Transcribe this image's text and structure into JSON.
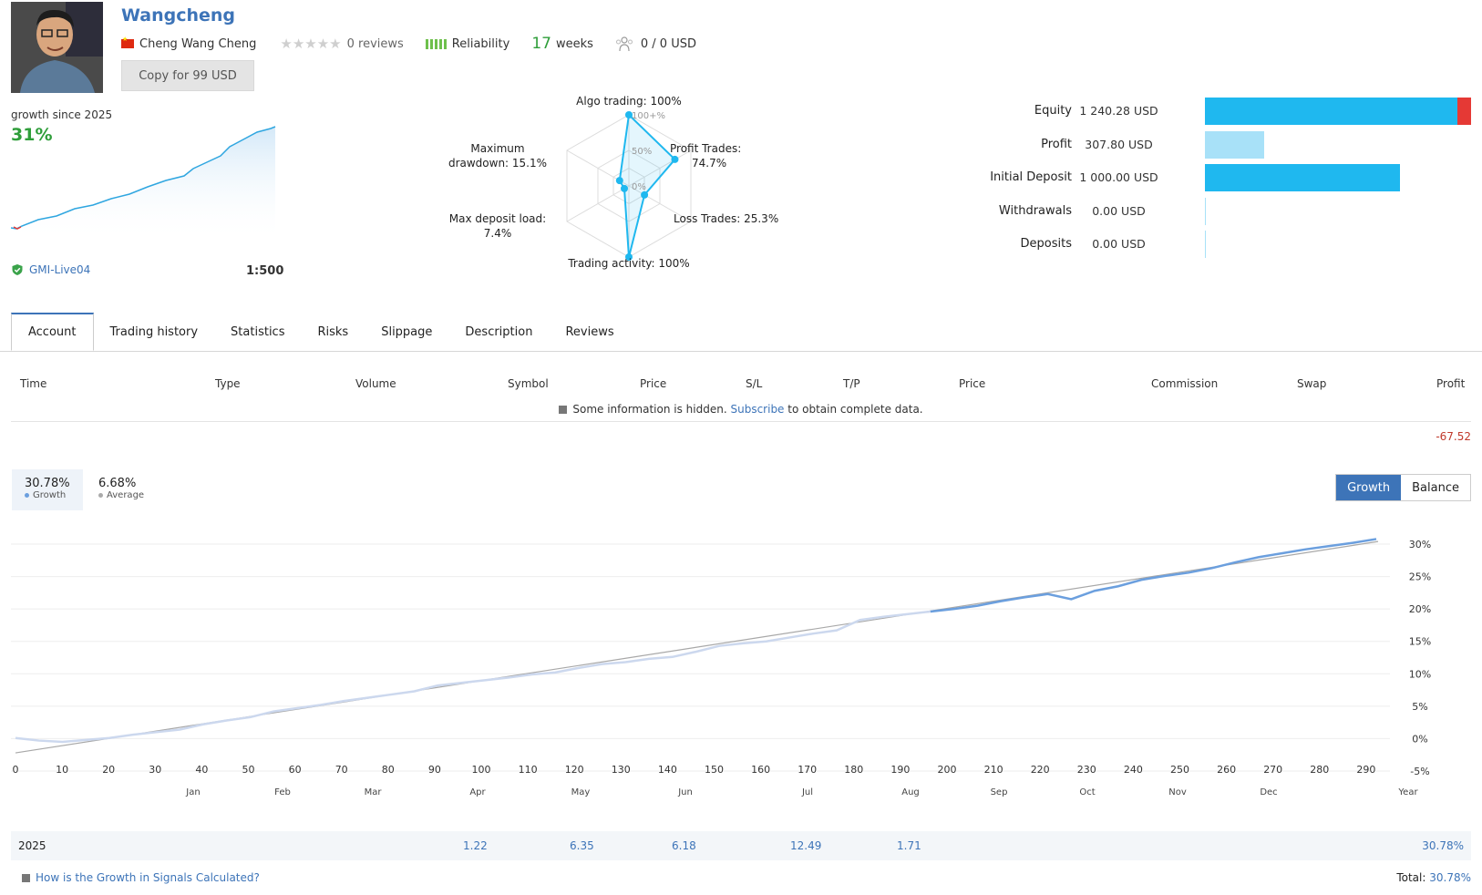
{
  "provider": {
    "name": "Wangcheng",
    "owner": "Cheng Wang Cheng",
    "country_flag": "china-flag",
    "reviews": "0 reviews",
    "reliability_label": "Reliability",
    "weeks_value": "17",
    "weeks_label": "weeks",
    "subscribers": "0 / 0 USD",
    "copy_button": "Copy for 99 USD"
  },
  "growth_summary": {
    "label": "growth since 2025",
    "value": "31%",
    "broker": "GMI-Live04",
    "leverage": "1:500"
  },
  "radar": {
    "algo": "Algo trading: 100%",
    "profit_a": "Profit Trades:",
    "profit_b": "74.7%",
    "loss": "Loss Trades: 25.3%",
    "activity": "Trading activity: 100%",
    "load_a": "Max deposit load:",
    "load_b": "7.4%",
    "dd_a": "Maximum",
    "dd_b": "drawdown: 15.1%",
    "ring_100": "100+%",
    "ring_50": "50%",
    "ring_0": "0%",
    "values": {
      "algo": 100,
      "profit": 74.7,
      "loss": 25.3,
      "activity": 100,
      "load": 7.4,
      "drawdown": 15.1
    }
  },
  "equity": [
    {
      "label": "Equity",
      "value": "1 240.28 USD",
      "amount": 1240.28
    },
    {
      "label": "Profit",
      "value": "307.80 USD",
      "amount": 307.8
    },
    {
      "label": "Initial Deposit",
      "value": "1 000.00 USD",
      "amount": 1000.0
    },
    {
      "label": "Withdrawals",
      "value": "0.00 USD",
      "amount": 0
    },
    {
      "label": "Deposits",
      "value": "0.00 USD",
      "amount": 0
    }
  ],
  "tabs": [
    "Account",
    "Trading history",
    "Statistics",
    "Risks",
    "Slippage",
    "Description",
    "Reviews"
  ],
  "table": {
    "headers": [
      "Time",
      "Type",
      "Volume",
      "Symbol",
      "Price",
      "S/L",
      "T/P",
      "Price",
      "Commission",
      "Swap",
      "Profit"
    ],
    "hidden_text": "Some information is hidden.",
    "hidden_link": "Subscribe",
    "hidden_tail": "to obtain complete data.",
    "profit_total": "-67.52"
  },
  "growth_panel": {
    "growth_value": "30.78%",
    "growth_label": "Growth",
    "average_value": "6.68%",
    "average_label": "Average",
    "toggle_growth": "Growth",
    "toggle_balance": "Balance"
  },
  "colors": {
    "accent": "#3d74b8",
    "growth_line": "#6b9fde",
    "trend_line": "#a8a8a8",
    "green": "#2f9e3a",
    "equity_bar": "#1fb8ef",
    "loss_red": "#e53935"
  },
  "chart_data": {
    "type": "line",
    "x_ticks": [
      "0",
      "10",
      "20",
      "30",
      "40",
      "50",
      "60",
      "70",
      "80",
      "90",
      "100",
      "110",
      "120",
      "130",
      "140",
      "150",
      "160",
      "170",
      "180",
      "190",
      "200",
      "210",
      "220",
      "230",
      "240",
      "250",
      "260",
      "270",
      "280",
      "290"
    ],
    "y_ticks": [
      "30%",
      "25%",
      "20%",
      "15%",
      "10%",
      "5%",
      "0%",
      "-5%"
    ],
    "ylim": [
      -5,
      30
    ],
    "xlim": [
      0,
      295
    ],
    "months": [
      "Jan",
      "Feb",
      "Mar",
      "Apr",
      "May",
      "Jun",
      "Jul",
      "Aug",
      "Sep",
      "Oct",
      "Nov",
      "Dec"
    ],
    "year_label": "Year",
    "series": [
      {
        "x": [
          0,
          5,
          10,
          15,
          20,
          25,
          30,
          35,
          40,
          45,
          50,
          55,
          60,
          65,
          70,
          75,
          80,
          85,
          90,
          95,
          100,
          105,
          110,
          115,
          120,
          125,
          130,
          135,
          140,
          145,
          150,
          155,
          160,
          165,
          170,
          175,
          180,
          185,
          190,
          195,
          200,
          205,
          210,
          215,
          220,
          225,
          230,
          235,
          240,
          245,
          250,
          255,
          260,
          265,
          270,
          275,
          280,
          285,
          290
        ],
        "y": [
          0.1,
          -0.3,
          -0.5,
          -0.2,
          0.1,
          0.6,
          1.0,
          1.4,
          2.2,
          2.8,
          3.3,
          4.2,
          4.7,
          5.2,
          5.8,
          6.3,
          6.8,
          7.3,
          8.2,
          8.6,
          9.0,
          9.4,
          9.9,
          10.2,
          10.9,
          11.5,
          11.8,
          12.3,
          12.6,
          13.4,
          14.3,
          14.7,
          15.0,
          15.6,
          16.2,
          16.7,
          18.3,
          18.8,
          19.2,
          19.6,
          20.0,
          20.5,
          21.2,
          21.8,
          22.3,
          21.5,
          22.8,
          23.5,
          24.5,
          25.1,
          25.6,
          26.3,
          27.2,
          28.0,
          28.6,
          29.2,
          29.7,
          30.2,
          30.78
        ]
      },
      {
        "x": [
          0,
          295
        ],
        "y": [
          -2.2,
          30.4
        ]
      }
    ]
  },
  "year_row": {
    "year": "2025",
    "values": [
      {
        "month": "Apr",
        "v": "1.22"
      },
      {
        "month": "May",
        "v": "6.35"
      },
      {
        "month": "Jun",
        "v": "6.18"
      },
      {
        "month": "Jul",
        "v": "12.49"
      },
      {
        "month": "Aug",
        "v": "1.71"
      }
    ],
    "year_total": "30.78%"
  },
  "footer": {
    "link": "How is the Growth in Signals Calculated?",
    "total_label": "Total:",
    "total_value": "30.78%"
  }
}
